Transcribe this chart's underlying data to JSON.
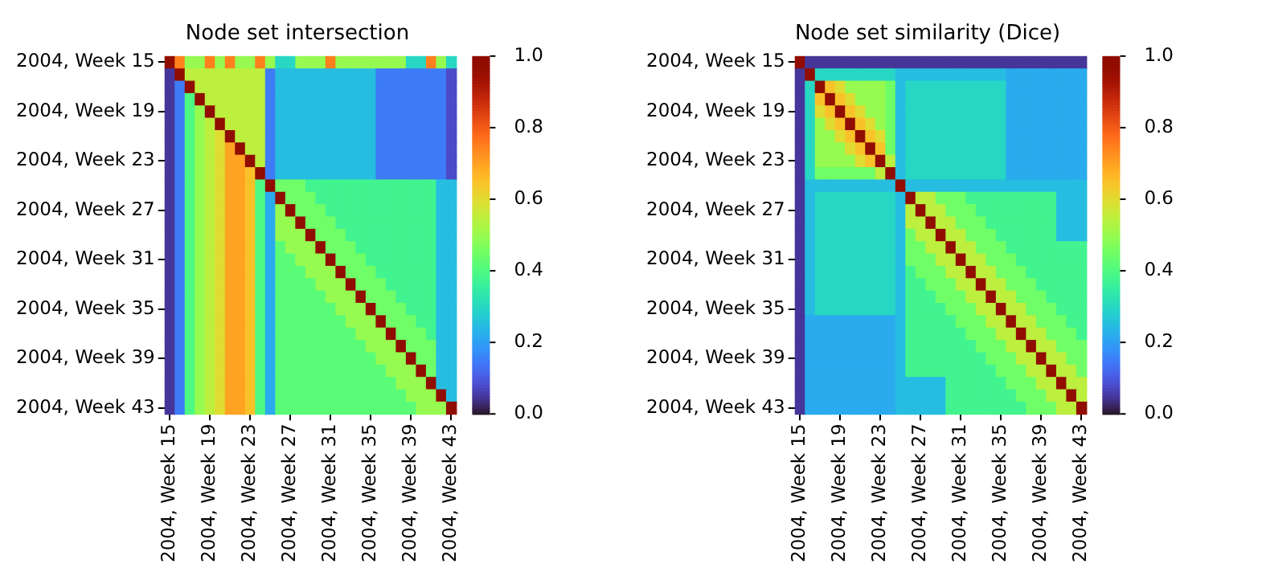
{
  "chart_data": [
    {
      "type": "heatmap",
      "title": "Node set intersection",
      "categories": [
        "2004, Week 15",
        null,
        null,
        null,
        "2004, Week 19",
        null,
        null,
        null,
        "2004, Week 23",
        null,
        null,
        null,
        "2004, Week 27",
        null,
        null,
        null,
        "2004, Week 31",
        null,
        null,
        null,
        "2004, Week 35",
        null,
        null,
        null,
        "2004, Week 39",
        null,
        null,
        null,
        "2004, Week 43"
      ],
      "y_categories": [
        "2004, Week 15",
        null,
        null,
        null,
        "2004, Week 19",
        null,
        null,
        null,
        "2004, Week 23",
        null,
        null,
        null,
        "2004, Week 27",
        null,
        null,
        null,
        "2004, Week 31",
        null,
        null,
        null,
        "2004, Week 35",
        null,
        null,
        null,
        "2004, Week 39",
        null,
        null,
        null,
        "2004, Week 43"
      ],
      "clim": [
        0,
        1
      ],
      "cticks": [
        {
          "value": 0,
          "label": "0.0"
        },
        {
          "value": 0.2,
          "label": "0.2"
        },
        {
          "value": 0.4,
          "label": "0.4"
        },
        {
          "value": 0.6,
          "label": "0.6"
        },
        {
          "value": 0.8,
          "label": "0.8"
        },
        {
          "value": 1,
          "label": "1.0"
        }
      ],
      "cells": [
        [
          1,
          0.75,
          0.5,
          0.5,
          0.75,
          0.5,
          0.75,
          0.5,
          0.5,
          0.75,
          0.5,
          0.3,
          0.3,
          0.5,
          0.5,
          0.5,
          0.75,
          0.5,
          0.5,
          0.5,
          0.5,
          0.5,
          0.5,
          0.5,
          0.3,
          0.3,
          0.75,
          0.5,
          0.3
        ],
        [
          0.05,
          1,
          0.55,
          0.55,
          0.55,
          0.55,
          0.55,
          0.55,
          0.55,
          0.55,
          0.15,
          0.25,
          0.25,
          0.25,
          0.25,
          0.25,
          0.25,
          0.25,
          0.25,
          0.25,
          0.25,
          0.15,
          0.15,
          0.15,
          0.15,
          0.15,
          0.15,
          0.15,
          0.08
        ],
        [
          0.05,
          0.15,
          1,
          0.55,
          0.55,
          0.55,
          0.55,
          0.55,
          0.55,
          0.55,
          0.15,
          0.25,
          0.25,
          0.25,
          0.25,
          0.25,
          0.25,
          0.25,
          0.25,
          0.25,
          0.25,
          0.15,
          0.15,
          0.15,
          0.15,
          0.15,
          0.15,
          0.15,
          0.08
        ],
        [
          0.05,
          0.15,
          0.4,
          1,
          0.55,
          0.55,
          0.55,
          0.55,
          0.55,
          0.55,
          0.15,
          0.25,
          0.25,
          0.25,
          0.25,
          0.25,
          0.25,
          0.25,
          0.25,
          0.25,
          0.25,
          0.15,
          0.15,
          0.15,
          0.15,
          0.15,
          0.15,
          0.15,
          0.08
        ],
        [
          0.05,
          0.15,
          0.4,
          0.5,
          1,
          0.55,
          0.55,
          0.55,
          0.55,
          0.55,
          0.15,
          0.25,
          0.25,
          0.25,
          0.25,
          0.25,
          0.25,
          0.25,
          0.25,
          0.25,
          0.25,
          0.15,
          0.15,
          0.15,
          0.15,
          0.15,
          0.15,
          0.15,
          0.08
        ],
        [
          0.05,
          0.15,
          0.4,
          0.5,
          0.55,
          1,
          0.55,
          0.55,
          0.55,
          0.55,
          0.15,
          0.25,
          0.25,
          0.25,
          0.25,
          0.25,
          0.25,
          0.25,
          0.25,
          0.25,
          0.25,
          0.15,
          0.15,
          0.15,
          0.15,
          0.15,
          0.15,
          0.15,
          0.08
        ],
        [
          0.05,
          0.15,
          0.4,
          0.5,
          0.55,
          0.6,
          1,
          0.55,
          0.55,
          0.55,
          0.15,
          0.25,
          0.25,
          0.25,
          0.25,
          0.25,
          0.25,
          0.25,
          0.25,
          0.25,
          0.25,
          0.15,
          0.15,
          0.15,
          0.15,
          0.15,
          0.15,
          0.15,
          0.08
        ],
        [
          0.05,
          0.15,
          0.4,
          0.5,
          0.55,
          0.6,
          0.7,
          1,
          0.55,
          0.55,
          0.15,
          0.25,
          0.25,
          0.25,
          0.25,
          0.25,
          0.25,
          0.25,
          0.25,
          0.25,
          0.25,
          0.15,
          0.15,
          0.15,
          0.15,
          0.15,
          0.15,
          0.15,
          0.08
        ],
        [
          0.05,
          0.15,
          0.4,
          0.5,
          0.55,
          0.6,
          0.7,
          0.7,
          1,
          0.55,
          0.15,
          0.25,
          0.25,
          0.25,
          0.25,
          0.25,
          0.25,
          0.25,
          0.25,
          0.25,
          0.25,
          0.15,
          0.15,
          0.15,
          0.15,
          0.15,
          0.15,
          0.15,
          0.08
        ],
        [
          0.05,
          0.15,
          0.4,
          0.5,
          0.55,
          0.6,
          0.7,
          0.7,
          0.65,
          1,
          0.15,
          0.25,
          0.25,
          0.25,
          0.25,
          0.25,
          0.25,
          0.25,
          0.25,
          0.25,
          0.25,
          0.15,
          0.15,
          0.15,
          0.15,
          0.15,
          0.15,
          0.15,
          0.08
        ],
        [
          0.05,
          0.15,
          0.4,
          0.5,
          0.55,
          0.6,
          0.7,
          0.7,
          0.65,
          0.4,
          1,
          0.45,
          0.45,
          0.45,
          0.38,
          0.38,
          0.38,
          0.38,
          0.38,
          0.38,
          0.38,
          0.38,
          0.38,
          0.38,
          0.38,
          0.38,
          0.38,
          0.25,
          0.25
        ],
        [
          0.05,
          0.15,
          0.4,
          0.5,
          0.55,
          0.6,
          0.7,
          0.7,
          0.65,
          0.4,
          0.22,
          1,
          0.45,
          0.45,
          0.45,
          0.38,
          0.38,
          0.38,
          0.38,
          0.38,
          0.38,
          0.38,
          0.38,
          0.38,
          0.38,
          0.38,
          0.38,
          0.25,
          0.25
        ],
        [
          0.05,
          0.15,
          0.4,
          0.5,
          0.55,
          0.6,
          0.7,
          0.7,
          0.65,
          0.4,
          0.22,
          0.5,
          1,
          0.45,
          0.45,
          0.45,
          0.38,
          0.38,
          0.38,
          0.38,
          0.38,
          0.38,
          0.38,
          0.38,
          0.38,
          0.38,
          0.38,
          0.25,
          0.25
        ],
        [
          0.05,
          0.15,
          0.4,
          0.5,
          0.55,
          0.6,
          0.7,
          0.7,
          0.65,
          0.4,
          0.22,
          0.5,
          0.5,
          1,
          0.45,
          0.45,
          0.45,
          0.38,
          0.38,
          0.38,
          0.38,
          0.38,
          0.38,
          0.38,
          0.38,
          0.38,
          0.38,
          0.25,
          0.25
        ],
        [
          0.05,
          0.15,
          0.4,
          0.5,
          0.55,
          0.6,
          0.7,
          0.7,
          0.65,
          0.4,
          0.22,
          0.5,
          0.5,
          0.5,
          1,
          0.45,
          0.45,
          0.45,
          0.38,
          0.38,
          0.38,
          0.38,
          0.38,
          0.38,
          0.38,
          0.38,
          0.38,
          0.25,
          0.25
        ],
        [
          0.05,
          0.15,
          0.4,
          0.5,
          0.55,
          0.6,
          0.7,
          0.7,
          0.65,
          0.4,
          0.22,
          0.42,
          0.5,
          0.5,
          0.5,
          1,
          0.45,
          0.45,
          0.45,
          0.38,
          0.38,
          0.38,
          0.38,
          0.38,
          0.38,
          0.38,
          0.38,
          0.25,
          0.25
        ],
        [
          0.05,
          0.15,
          0.4,
          0.5,
          0.55,
          0.6,
          0.7,
          0.7,
          0.65,
          0.4,
          0.22,
          0.42,
          0.42,
          0.5,
          0.5,
          0.5,
          1,
          0.45,
          0.45,
          0.45,
          0.38,
          0.38,
          0.38,
          0.38,
          0.38,
          0.38,
          0.38,
          0.25,
          0.25
        ],
        [
          0.05,
          0.15,
          0.4,
          0.5,
          0.55,
          0.6,
          0.7,
          0.7,
          0.65,
          0.4,
          0.22,
          0.42,
          0.42,
          0.42,
          0.5,
          0.5,
          0.5,
          1,
          0.45,
          0.45,
          0.45,
          0.38,
          0.38,
          0.38,
          0.38,
          0.38,
          0.38,
          0.25,
          0.25
        ],
        [
          0.05,
          0.15,
          0.4,
          0.5,
          0.55,
          0.6,
          0.7,
          0.7,
          0.65,
          0.4,
          0.22,
          0.42,
          0.42,
          0.42,
          0.42,
          0.5,
          0.5,
          0.5,
          1,
          0.45,
          0.45,
          0.45,
          0.38,
          0.38,
          0.38,
          0.38,
          0.38,
          0.25,
          0.25
        ],
        [
          0.05,
          0.15,
          0.4,
          0.5,
          0.55,
          0.6,
          0.7,
          0.7,
          0.65,
          0.4,
          0.22,
          0.42,
          0.42,
          0.42,
          0.42,
          0.42,
          0.5,
          0.5,
          0.5,
          1,
          0.45,
          0.45,
          0.45,
          0.38,
          0.38,
          0.38,
          0.38,
          0.25,
          0.25
        ],
        [
          0.05,
          0.15,
          0.4,
          0.5,
          0.55,
          0.6,
          0.7,
          0.7,
          0.65,
          0.4,
          0.22,
          0.42,
          0.42,
          0.42,
          0.42,
          0.42,
          0.42,
          0.5,
          0.5,
          0.5,
          1,
          0.45,
          0.45,
          0.45,
          0.38,
          0.38,
          0.38,
          0.25,
          0.25
        ],
        [
          0.05,
          0.15,
          0.4,
          0.5,
          0.55,
          0.6,
          0.7,
          0.7,
          0.65,
          0.4,
          0.22,
          0.42,
          0.42,
          0.42,
          0.42,
          0.42,
          0.42,
          0.42,
          0.5,
          0.5,
          0.5,
          1,
          0.45,
          0.45,
          0.45,
          0.38,
          0.38,
          0.25,
          0.25
        ],
        [
          0.05,
          0.15,
          0.4,
          0.5,
          0.55,
          0.6,
          0.7,
          0.7,
          0.65,
          0.4,
          0.22,
          0.42,
          0.42,
          0.42,
          0.42,
          0.42,
          0.42,
          0.42,
          0.42,
          0.5,
          0.5,
          0.5,
          1,
          0.45,
          0.45,
          0.45,
          0.38,
          0.25,
          0.25
        ],
        [
          0.05,
          0.15,
          0.4,
          0.5,
          0.55,
          0.6,
          0.7,
          0.7,
          0.65,
          0.4,
          0.22,
          0.42,
          0.42,
          0.42,
          0.42,
          0.42,
          0.42,
          0.42,
          0.42,
          0.42,
          0.5,
          0.5,
          0.5,
          1,
          0.45,
          0.45,
          0.45,
          0.25,
          0.25
        ],
        [
          0.05,
          0.15,
          0.4,
          0.5,
          0.55,
          0.6,
          0.7,
          0.7,
          0.65,
          0.4,
          0.22,
          0.42,
          0.42,
          0.42,
          0.42,
          0.42,
          0.42,
          0.42,
          0.42,
          0.42,
          0.42,
          0.5,
          0.5,
          0.5,
          1,
          0.45,
          0.45,
          0.25,
          0.25
        ],
        [
          0.05,
          0.15,
          0.4,
          0.5,
          0.55,
          0.6,
          0.7,
          0.7,
          0.65,
          0.4,
          0.22,
          0.42,
          0.42,
          0.42,
          0.42,
          0.42,
          0.42,
          0.42,
          0.42,
          0.42,
          0.42,
          0.42,
          0.5,
          0.5,
          0.5,
          1,
          0.45,
          0.25,
          0.25
        ],
        [
          0.05,
          0.15,
          0.4,
          0.5,
          0.55,
          0.6,
          0.7,
          0.7,
          0.65,
          0.4,
          0.22,
          0.42,
          0.42,
          0.42,
          0.42,
          0.42,
          0.42,
          0.42,
          0.42,
          0.42,
          0.42,
          0.42,
          0.42,
          0.5,
          0.5,
          0.5,
          1,
          0.25,
          0.25
        ],
        [
          0.05,
          0.15,
          0.4,
          0.5,
          0.55,
          0.6,
          0.7,
          0.7,
          0.65,
          0.4,
          0.22,
          0.42,
          0.42,
          0.42,
          0.42,
          0.42,
          0.42,
          0.42,
          0.42,
          0.42,
          0.42,
          0.42,
          0.42,
          0.42,
          0.5,
          0.5,
          0.5,
          1,
          0.25
        ],
        [
          0.05,
          0.15,
          0.4,
          0.5,
          0.55,
          0.6,
          0.7,
          0.7,
          0.65,
          0.4,
          0.22,
          0.42,
          0.42,
          0.42,
          0.42,
          0.42,
          0.42,
          0.42,
          0.42,
          0.42,
          0.42,
          0.42,
          0.42,
          0.42,
          0.42,
          0.5,
          0.5,
          0.5,
          1
        ]
      ]
    },
    {
      "type": "heatmap",
      "title": "Node set similarity (Dice)",
      "categories": [
        "2004, Week 15",
        null,
        null,
        null,
        "2004, Week 19",
        null,
        null,
        null,
        "2004, Week 23",
        null,
        null,
        null,
        "2004, Week 27",
        null,
        null,
        null,
        "2004, Week 31",
        null,
        null,
        null,
        "2004, Week 35",
        null,
        null,
        null,
        "2004, Week 39",
        null,
        null,
        null,
        "2004, Week 43"
      ],
      "y_categories": [
        "2004, Week 15",
        null,
        null,
        null,
        "2004, Week 19",
        null,
        null,
        null,
        "2004, Week 23",
        null,
        null,
        null,
        "2004, Week 27",
        null,
        null,
        null,
        "2004, Week 31",
        null,
        null,
        null,
        "2004, Week 35",
        null,
        null,
        null,
        "2004, Week 39",
        null,
        null,
        null,
        "2004, Week 43"
      ],
      "clim": [
        0,
        1
      ],
      "cticks": [
        {
          "value": 0,
          "label": "0.0"
        },
        {
          "value": 0.2,
          "label": "0.2"
        },
        {
          "value": 0.4,
          "label": "0.4"
        },
        {
          "value": 0.6,
          "label": "0.6"
        },
        {
          "value": 0.8,
          "label": "0.8"
        },
        {
          "value": 1,
          "label": "1.0"
        }
      ],
      "cells": [
        [
          1,
          0.05,
          0.05,
          0.05,
          0.05,
          0.05,
          0.05,
          0.05,
          0.05,
          0.05,
          0.05,
          0.05,
          0.05,
          0.05,
          0.05,
          0.05,
          0.05,
          0.05,
          0.05,
          0.05,
          0.05,
          0.05,
          0.05,
          0.05,
          0.05,
          0.05,
          0.05,
          0.05,
          0.05
        ],
        [
          0.05,
          1,
          0.3,
          0.3,
          0.3,
          0.3,
          0.3,
          0.3,
          0.3,
          0.3,
          0.25,
          0.25,
          0.25,
          0.25,
          0.25,
          0.25,
          0.25,
          0.25,
          0.25,
          0.25,
          0.25,
          0.22,
          0.22,
          0.22,
          0.22,
          0.22,
          0.22,
          0.22,
          0.22
        ],
        [
          0.05,
          0.3,
          1,
          0.65,
          0.6,
          0.5,
          0.5,
          0.5,
          0.5,
          0.45,
          0.25,
          0.3,
          0.3,
          0.3,
          0.3,
          0.3,
          0.3,
          0.3,
          0.3,
          0.3,
          0.3,
          0.22,
          0.22,
          0.22,
          0.22,
          0.22,
          0.22,
          0.22,
          0.22
        ],
        [
          0.05,
          0.3,
          0.65,
          1,
          0.65,
          0.6,
          0.5,
          0.5,
          0.5,
          0.45,
          0.25,
          0.3,
          0.3,
          0.3,
          0.3,
          0.3,
          0.3,
          0.3,
          0.3,
          0.3,
          0.3,
          0.22,
          0.22,
          0.22,
          0.22,
          0.22,
          0.22,
          0.22,
          0.22
        ],
        [
          0.05,
          0.3,
          0.6,
          0.65,
          1,
          0.65,
          0.6,
          0.5,
          0.5,
          0.45,
          0.25,
          0.3,
          0.3,
          0.3,
          0.3,
          0.3,
          0.3,
          0.3,
          0.3,
          0.3,
          0.3,
          0.22,
          0.22,
          0.22,
          0.22,
          0.22,
          0.22,
          0.22,
          0.22
        ],
        [
          0.05,
          0.3,
          0.5,
          0.6,
          0.65,
          1,
          0.65,
          0.6,
          0.5,
          0.45,
          0.25,
          0.3,
          0.3,
          0.3,
          0.3,
          0.3,
          0.3,
          0.3,
          0.3,
          0.3,
          0.3,
          0.22,
          0.22,
          0.22,
          0.22,
          0.22,
          0.22,
          0.22,
          0.22
        ],
        [
          0.05,
          0.3,
          0.5,
          0.5,
          0.6,
          0.65,
          1,
          0.65,
          0.6,
          0.45,
          0.25,
          0.3,
          0.3,
          0.3,
          0.3,
          0.3,
          0.3,
          0.3,
          0.3,
          0.3,
          0.3,
          0.22,
          0.22,
          0.22,
          0.22,
          0.22,
          0.22,
          0.22,
          0.22
        ],
        [
          0.05,
          0.3,
          0.5,
          0.5,
          0.5,
          0.6,
          0.65,
          1,
          0.65,
          0.45,
          0.25,
          0.3,
          0.3,
          0.3,
          0.3,
          0.3,
          0.3,
          0.3,
          0.3,
          0.3,
          0.3,
          0.22,
          0.22,
          0.22,
          0.22,
          0.22,
          0.22,
          0.22,
          0.22
        ],
        [
          0.05,
          0.3,
          0.5,
          0.5,
          0.5,
          0.5,
          0.6,
          0.65,
          1,
          0.55,
          0.25,
          0.3,
          0.3,
          0.3,
          0.3,
          0.3,
          0.3,
          0.3,
          0.3,
          0.3,
          0.3,
          0.22,
          0.22,
          0.22,
          0.22,
          0.22,
          0.22,
          0.22,
          0.22
        ],
        [
          0.05,
          0.3,
          0.45,
          0.45,
          0.45,
          0.45,
          0.45,
          0.45,
          0.55,
          1,
          0.25,
          0.3,
          0.3,
          0.3,
          0.3,
          0.3,
          0.3,
          0.3,
          0.3,
          0.3,
          0.3,
          0.22,
          0.22,
          0.22,
          0.22,
          0.22,
          0.22,
          0.22,
          0.22
        ],
        [
          0.05,
          0.25,
          0.25,
          0.25,
          0.25,
          0.25,
          0.25,
          0.25,
          0.25,
          0.25,
          1,
          0.25,
          0.25,
          0.25,
          0.25,
          0.25,
          0.25,
          0.25,
          0.25,
          0.25,
          0.25,
          0.25,
          0.25,
          0.25,
          0.25,
          0.25,
          0.25,
          0.25,
          0.25
        ],
        [
          0.05,
          0.25,
          0.3,
          0.3,
          0.3,
          0.3,
          0.3,
          0.3,
          0.3,
          0.3,
          0.25,
          1,
          0.55,
          0.55,
          0.45,
          0.45,
          0.45,
          0.38,
          0.38,
          0.38,
          0.38,
          0.38,
          0.38,
          0.38,
          0.38,
          0.38,
          0.25,
          0.25,
          0.25
        ],
        [
          0.05,
          0.25,
          0.3,
          0.3,
          0.3,
          0.3,
          0.3,
          0.3,
          0.3,
          0.3,
          0.25,
          0.55,
          1,
          0.55,
          0.55,
          0.45,
          0.45,
          0.45,
          0.38,
          0.38,
          0.38,
          0.38,
          0.38,
          0.38,
          0.38,
          0.38,
          0.25,
          0.25,
          0.25
        ],
        [
          0.05,
          0.25,
          0.3,
          0.3,
          0.3,
          0.3,
          0.3,
          0.3,
          0.3,
          0.3,
          0.25,
          0.55,
          0.55,
          1,
          0.55,
          0.55,
          0.45,
          0.45,
          0.45,
          0.38,
          0.38,
          0.38,
          0.38,
          0.38,
          0.38,
          0.38,
          0.25,
          0.25,
          0.25
        ],
        [
          0.05,
          0.25,
          0.3,
          0.3,
          0.3,
          0.3,
          0.3,
          0.3,
          0.3,
          0.3,
          0.25,
          0.45,
          0.55,
          0.55,
          1,
          0.55,
          0.55,
          0.45,
          0.45,
          0.45,
          0.38,
          0.38,
          0.38,
          0.38,
          0.38,
          0.38,
          0.25,
          0.25,
          0.25
        ],
        [
          0.05,
          0.25,
          0.3,
          0.3,
          0.3,
          0.3,
          0.3,
          0.3,
          0.3,
          0.3,
          0.25,
          0.45,
          0.45,
          0.55,
          0.55,
          1,
          0.55,
          0.55,
          0.45,
          0.45,
          0.45,
          0.38,
          0.38,
          0.38,
          0.38,
          0.38,
          0.38,
          0.38,
          0.38
        ],
        [
          0.05,
          0.25,
          0.3,
          0.3,
          0.3,
          0.3,
          0.3,
          0.3,
          0.3,
          0.3,
          0.25,
          0.45,
          0.45,
          0.45,
          0.55,
          0.55,
          1,
          0.55,
          0.55,
          0.45,
          0.45,
          0.45,
          0.38,
          0.38,
          0.38,
          0.38,
          0.38,
          0.38,
          0.38
        ],
        [
          0.05,
          0.25,
          0.3,
          0.3,
          0.3,
          0.3,
          0.3,
          0.3,
          0.3,
          0.3,
          0.25,
          0.38,
          0.45,
          0.45,
          0.45,
          0.55,
          0.55,
          1,
          0.55,
          0.55,
          0.45,
          0.45,
          0.45,
          0.38,
          0.38,
          0.38,
          0.38,
          0.38,
          0.38
        ],
        [
          0.05,
          0.25,
          0.3,
          0.3,
          0.3,
          0.3,
          0.3,
          0.3,
          0.3,
          0.3,
          0.25,
          0.38,
          0.38,
          0.45,
          0.45,
          0.45,
          0.55,
          0.55,
          1,
          0.55,
          0.55,
          0.45,
          0.45,
          0.45,
          0.38,
          0.38,
          0.38,
          0.38,
          0.38
        ],
        [
          0.05,
          0.25,
          0.3,
          0.3,
          0.3,
          0.3,
          0.3,
          0.3,
          0.3,
          0.3,
          0.25,
          0.38,
          0.38,
          0.38,
          0.45,
          0.45,
          0.45,
          0.55,
          0.55,
          1,
          0.55,
          0.55,
          0.45,
          0.45,
          0.45,
          0.38,
          0.38,
          0.38,
          0.38
        ],
        [
          0.05,
          0.25,
          0.3,
          0.3,
          0.3,
          0.3,
          0.3,
          0.3,
          0.3,
          0.3,
          0.25,
          0.38,
          0.38,
          0.38,
          0.38,
          0.45,
          0.45,
          0.45,
          0.55,
          0.55,
          1,
          0.55,
          0.55,
          0.45,
          0.45,
          0.45,
          0.38,
          0.38,
          0.38
        ],
        [
          0.05,
          0.22,
          0.22,
          0.22,
          0.22,
          0.22,
          0.22,
          0.22,
          0.22,
          0.22,
          0.25,
          0.38,
          0.38,
          0.38,
          0.38,
          0.38,
          0.45,
          0.45,
          0.45,
          0.55,
          0.55,
          1,
          0.55,
          0.55,
          0.45,
          0.45,
          0.45,
          0.38,
          0.38
        ],
        [
          0.05,
          0.22,
          0.22,
          0.22,
          0.22,
          0.22,
          0.22,
          0.22,
          0.22,
          0.22,
          0.25,
          0.38,
          0.38,
          0.38,
          0.38,
          0.38,
          0.38,
          0.45,
          0.45,
          0.45,
          0.55,
          0.55,
          1,
          0.55,
          0.55,
          0.45,
          0.45,
          0.45,
          0.38
        ],
        [
          0.05,
          0.22,
          0.22,
          0.22,
          0.22,
          0.22,
          0.22,
          0.22,
          0.22,
          0.22,
          0.25,
          0.38,
          0.38,
          0.38,
          0.38,
          0.38,
          0.38,
          0.38,
          0.45,
          0.45,
          0.45,
          0.55,
          0.55,
          1,
          0.55,
          0.55,
          0.45,
          0.45,
          0.45
        ],
        [
          0.05,
          0.22,
          0.22,
          0.22,
          0.22,
          0.22,
          0.22,
          0.22,
          0.22,
          0.22,
          0.25,
          0.38,
          0.38,
          0.38,
          0.38,
          0.38,
          0.38,
          0.38,
          0.38,
          0.45,
          0.45,
          0.45,
          0.55,
          0.55,
          1,
          0.55,
          0.55,
          0.45,
          0.45
        ],
        [
          0.05,
          0.22,
          0.22,
          0.22,
          0.22,
          0.22,
          0.22,
          0.22,
          0.22,
          0.22,
          0.25,
          0.38,
          0.38,
          0.38,
          0.38,
          0.38,
          0.38,
          0.38,
          0.38,
          0.38,
          0.45,
          0.45,
          0.45,
          0.55,
          0.55,
          1,
          0.55,
          0.55,
          0.45
        ],
        [
          0.05,
          0.22,
          0.22,
          0.22,
          0.22,
          0.22,
          0.22,
          0.22,
          0.22,
          0.22,
          0.25,
          0.25,
          0.25,
          0.25,
          0.25,
          0.38,
          0.38,
          0.38,
          0.38,
          0.38,
          0.38,
          0.45,
          0.45,
          0.45,
          0.55,
          0.55,
          1,
          0.55,
          0.55
        ],
        [
          0.05,
          0.22,
          0.22,
          0.22,
          0.22,
          0.22,
          0.22,
          0.22,
          0.22,
          0.22,
          0.25,
          0.25,
          0.25,
          0.25,
          0.25,
          0.38,
          0.38,
          0.38,
          0.38,
          0.38,
          0.38,
          0.38,
          0.45,
          0.45,
          0.45,
          0.55,
          0.55,
          1,
          0.55
        ],
        [
          0.05,
          0.22,
          0.22,
          0.22,
          0.22,
          0.22,
          0.22,
          0.22,
          0.22,
          0.22,
          0.25,
          0.25,
          0.25,
          0.25,
          0.25,
          0.38,
          0.38,
          0.38,
          0.38,
          0.38,
          0.38,
          0.38,
          0.38,
          0.45,
          0.45,
          0.45,
          0.55,
          0.55,
          1
        ]
      ]
    }
  ]
}
